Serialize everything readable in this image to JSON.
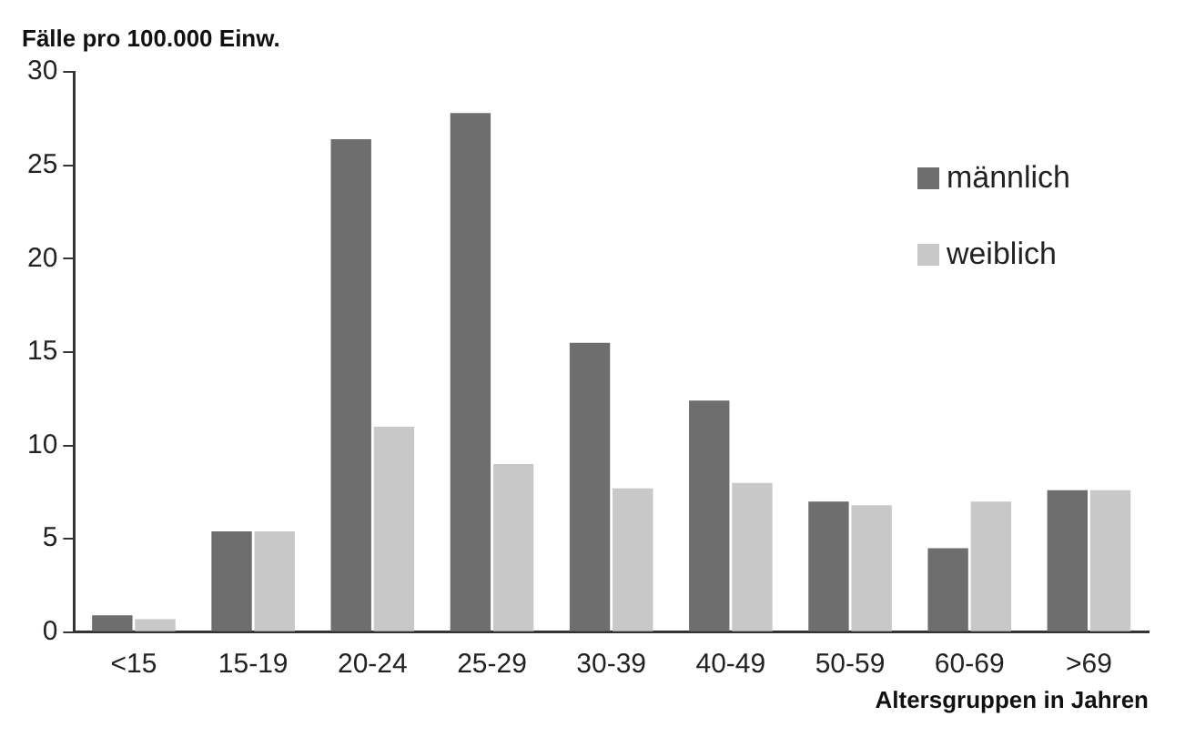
{
  "chart_data": {
    "type": "bar",
    "title": "Fälle pro 100.000 Einw.",
    "xlabel": "Altersgruppen in Jahren",
    "categories": [
      "<15",
      "15-19",
      "20-24",
      "25-29",
      "30-39",
      "40-49",
      "50-59",
      "60-69",
      ">69"
    ],
    "series": [
      {
        "name": "männlich",
        "color": "#6e6e6e",
        "values": [
          0.9,
          5.4,
          26.4,
          27.8,
          15.5,
          12.4,
          7.0,
          4.5,
          7.6
        ]
      },
      {
        "name": "weiblich",
        "color": "#c8c8c8",
        "values": [
          0.7,
          5.4,
          11.0,
          9.0,
          7.7,
          8.0,
          6.8,
          7.0,
          7.6
        ]
      }
    ],
    "ylim": [
      0,
      30
    ],
    "yticks": [
      0,
      5,
      10,
      15,
      20,
      25,
      30
    ],
    "grid": false,
    "legend": "top right"
  }
}
